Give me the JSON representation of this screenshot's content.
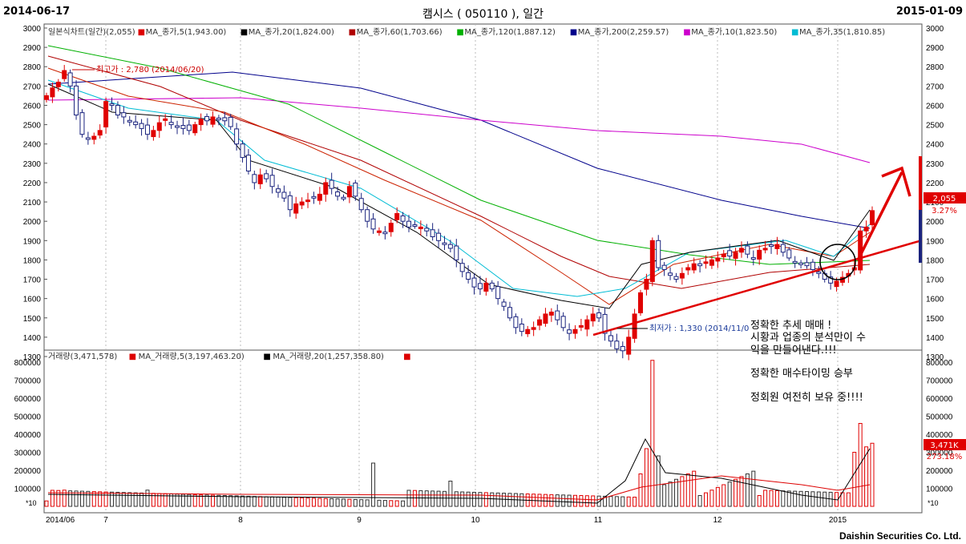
{
  "header": {
    "start_date": "2014-06-17",
    "title": "캠시스 ( 050110 ), 일간",
    "end_date": "2015-01-09"
  },
  "legend_price": [
    {
      "text": "일본식차트(일간)(2,055)",
      "color": "#000000"
    },
    {
      "text": "MA_종가,5(1,943.00)",
      "color": "#dd0000"
    },
    {
      "text": "MA_종가,20(1,824.00)",
      "color": "#000000"
    },
    {
      "text": "MA_종가,60(1,703.66)",
      "color": "#b00000"
    },
    {
      "text": "MA_종가,120(1,887.12)",
      "color": "#00b000"
    },
    {
      "text": "MA_종가,200(2,259.57)",
      "color": "#00008b"
    },
    {
      "text": "MA_종가,10(1,823.50)",
      "color": "#cc00cc"
    },
    {
      "text": "MA_종가,35(1,810.85)",
      "color": "#00bcd4"
    }
  ],
  "legend_volume": [
    {
      "text": "거래량(3,471,578)",
      "color": "#dd0000"
    },
    {
      "text": "MA_거래량,5(3,197,463.20)",
      "color": "#000000"
    },
    {
      "text": "MA_거래량,20(1,257,358.80)",
      "color": "#dd0000"
    }
  ],
  "annotations": {
    "high_label": "최고가 : 2,780 (2014/06/20)",
    "low_label": "최저가 : 1,330 (2014/11/0",
    "text_line1": "정확한 추세 매매 !",
    "text_line2": "시황과 업종의 분석만이 수",
    "text_line3": "익을 만들어낸다.!!!",
    "text_line4": "정확한 매수타이밍 승부",
    "text_line5": "정회원 여전히 보유 중!!!!"
  },
  "price_tag": {
    "value": "2,055",
    "pct": "3.27%"
  },
  "volume_tag": {
    "value": "3,471K",
    "pct": "273.18%"
  },
  "x10_label": "*10",
  "footer": "Daishin Securities Co. Ltd.",
  "colors": {
    "up": "#e00000",
    "down": "#1a237e",
    "trend": "#e00000"
  },
  "chart_data": [
    {
      "type": "candlestick",
      "title": "캠시스 ( 050110 ), 일간",
      "x_tick_labels": [
        "2014/06",
        "7",
        "8",
        "9",
        "10",
        "11",
        "12",
        "2015"
      ],
      "y_ticks": [
        1300,
        1400,
        1500,
        1600,
        1700,
        1800,
        1900,
        2000,
        2100,
        2200,
        2300,
        2400,
        2500,
        2600,
        2700,
        2800,
        2900,
        3000
      ],
      "ylim": [
        1220,
        3010
      ],
      "last_close": 2055,
      "high": {
        "value": 2780,
        "date": "2014/06/20"
      },
      "low": {
        "value": 1330,
        "date": "2014/11/0"
      },
      "close_series": [
        2650,
        2690,
        2720,
        2780,
        2700,
        2550,
        2450,
        2430,
        2440,
        2470,
        2620,
        2600,
        2550,
        2540,
        2520,
        2500,
        2480,
        2450,
        2470,
        2510,
        2530,
        2500,
        2490,
        2480,
        2470,
        2500,
        2530,
        2520,
        2540,
        2530,
        2520,
        2490,
        2400,
        2330,
        2260,
        2200,
        2240,
        2220,
        2180,
        2150,
        2120,
        2060,
        2090,
        2100,
        2110,
        2120,
        2140,
        2200,
        2170,
        2130,
        2120,
        2180,
        2130,
        2060,
        2000,
        1960,
        1950,
        1940,
        1990,
        2040,
        2000,
        1970,
        1980,
        1970,
        1950,
        1920,
        1900,
        1880,
        1860,
        1800,
        1740,
        1700,
        1660,
        1650,
        1680,
        1650,
        1600,
        1560,
        1500,
        1450,
        1430,
        1440,
        1450,
        1490,
        1520,
        1530,
        1490,
        1450,
        1420,
        1440,
        1460,
        1490,
        1520,
        1500,
        1420,
        1380,
        1340,
        1330,
        1400,
        1520,
        1630,
        1700,
        1900,
        1760,
        1750,
        1720,
        1700,
        1730,
        1760,
        1780,
        1770,
        1790,
        1800,
        1810,
        1830,
        1820,
        1840,
        1860,
        1830,
        1810,
        1850,
        1860,
        1870,
        1880,
        1840,
        1810,
        1790,
        1780,
        1770,
        1750,
        1730,
        1700,
        1680,
        1690,
        1710,
        1730,
        1760,
        1950,
        1970,
        2055
      ],
      "ma_series": [
        {
          "name": "MA_종가,200",
          "values": [
            2700,
            2750,
            2770,
            2750,
            2600,
            2400,
            2200,
            2000,
            1930,
            1880
          ]
        },
        {
          "name": "MA_종가,10",
          "values": [
            2610,
            2620,
            2610,
            2580,
            2500,
            2420,
            2380,
            2340,
            2300,
            2260
          ]
        },
        {
          "name": "MA_종가,120",
          "values": [
            2910,
            2760,
            2530,
            2300,
            2100,
            1900,
            1760,
            1700,
            1690,
            1710
          ]
        }
      ]
    },
    {
      "type": "bar",
      "title": "거래량",
      "y_ticks": [
        100000,
        200000,
        300000,
        400000,
        500000,
        600000,
        700000,
        800000
      ],
      "ylim": [
        0,
        850000
      ],
      "last_value": 3471578
    }
  ]
}
